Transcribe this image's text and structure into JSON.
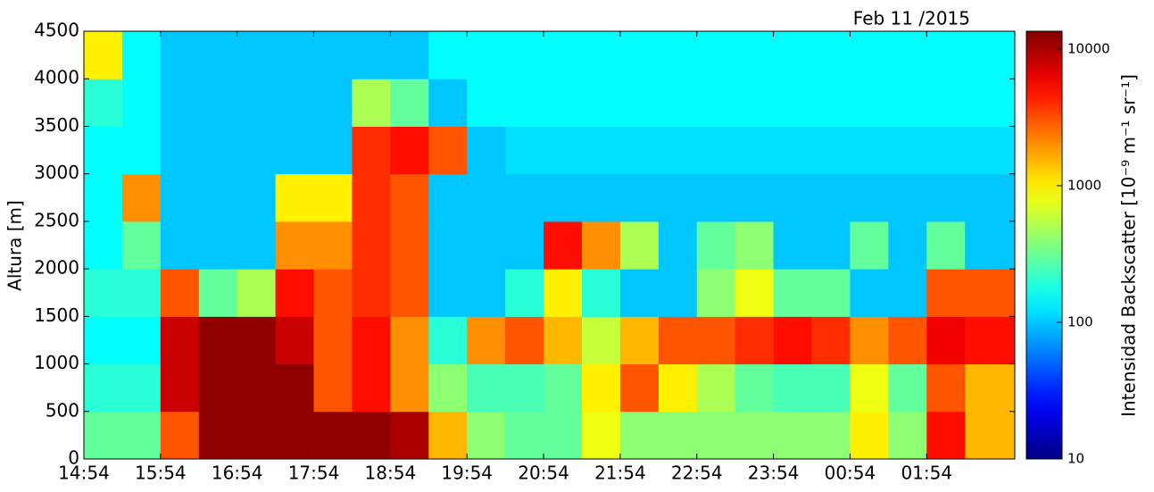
{
  "chart_data": {
    "type": "heatmap",
    "title": "Feb 11 /2015",
    "ylabel": "Altura [m]",
    "colorbar_label": "Intensidad Backscatter [10⁻⁹ m⁻¹ sr⁻¹]",
    "colormap": "jet",
    "color_scale": "log",
    "clim": [
      10,
      13500
    ],
    "colorbar_ticks": [
      10,
      100,
      1000,
      10000
    ],
    "xlim": [
      0,
      12.15
    ],
    "xticks": [
      {
        "value": 0,
        "label": "14:54"
      },
      {
        "value": 1,
        "label": "15:54"
      },
      {
        "value": 2,
        "label": "16:54"
      },
      {
        "value": 3,
        "label": "17:54"
      },
      {
        "value": 4,
        "label": "18:54"
      },
      {
        "value": 5,
        "label": "19:54"
      },
      {
        "value": 6,
        "label": "20:54"
      },
      {
        "value": 7,
        "label": "21:54"
      },
      {
        "value": 8,
        "label": "22:54"
      },
      {
        "value": 9,
        "label": "23:54"
      },
      {
        "value": 10,
        "label": "00:54"
      },
      {
        "value": 11,
        "label": "01:54"
      }
    ],
    "ylim": [
      0,
      4500
    ],
    "yticks": [
      0,
      500,
      1000,
      1500,
      2000,
      2500,
      3000,
      3500,
      4000,
      4500
    ],
    "x_bins": [
      0,
      0.5,
      1,
      1.5,
      2,
      2.5,
      3,
      3.5,
      4,
      4.5,
      5,
      5.5,
      6,
      6.5,
      7,
      7.5,
      8,
      8.5,
      9,
      9.5,
      10,
      10.5,
      11,
      11.5,
      12.15
    ],
    "y_bins": [
      0,
      500,
      1000,
      1500,
      2000,
      2500,
      3000,
      3500,
      4000,
      4500
    ],
    "values": [
      [
        300,
        300,
        3000,
        12000,
        12000,
        12000,
        12000,
        12000,
        10000,
        1500,
        400,
        300,
        300,
        800,
        400,
        400,
        400,
        400,
        400,
        400,
        1000,
        400,
        5000,
        1500
      ],
      [
        200,
        200,
        8000,
        12000,
        12000,
        12000,
        3000,
        5000,
        2000,
        400,
        250,
        250,
        300,
        1000,
        3000,
        1000,
        500,
        300,
        250,
        250,
        800,
        300,
        3000,
        1500
      ],
      [
        150,
        150,
        8000,
        12000,
        12000,
        8000,
        3000,
        5000,
        2000,
        200,
        2000,
        3000,
        1500,
        600,
        1500,
        3000,
        3000,
        4000,
        5000,
        4000,
        2000,
        3000,
        6000,
        5000
      ],
      [
        200,
        200,
        3000,
        300,
        500,
        5000,
        3000,
        4000,
        3000,
        100,
        100,
        200,
        1000,
        200,
        100,
        100,
        400,
        800,
        300,
        300,
        100,
        100,
        3000,
        3000
      ],
      [
        150,
        300,
        100,
        100,
        100,
        2000,
        2000,
        4000,
        3000,
        100,
        100,
        100,
        5000,
        2000,
        500,
        100,
        300,
        400,
        100,
        100,
        300,
        100,
        300,
        100
      ],
      [
        150,
        2000,
        100,
        100,
        100,
        1000,
        1000,
        4000,
        3000,
        100,
        100,
        100,
        100,
        100,
        100,
        100,
        100,
        100,
        100,
        100,
        100,
        100,
        100,
        100
      ],
      [
        150,
        150,
        100,
        100,
        100,
        100,
        100,
        4000,
        5000,
        3000,
        100,
        120,
        120,
        120,
        120,
        120,
        120,
        120,
        120,
        120,
        120,
        120,
        120,
        120
      ],
      [
        200,
        150,
        100,
        100,
        100,
        100,
        100,
        500,
        300,
        100,
        150,
        150,
        150,
        150,
        150,
        150,
        150,
        150,
        150,
        150,
        150,
        150,
        150,
        150
      ],
      [
        1000,
        150,
        100,
        100,
        100,
        100,
        100,
        100,
        100,
        150,
        150,
        150,
        150,
        150,
        150,
        150,
        150,
        150,
        150,
        150,
        150,
        150,
        150,
        150
      ]
    ]
  }
}
